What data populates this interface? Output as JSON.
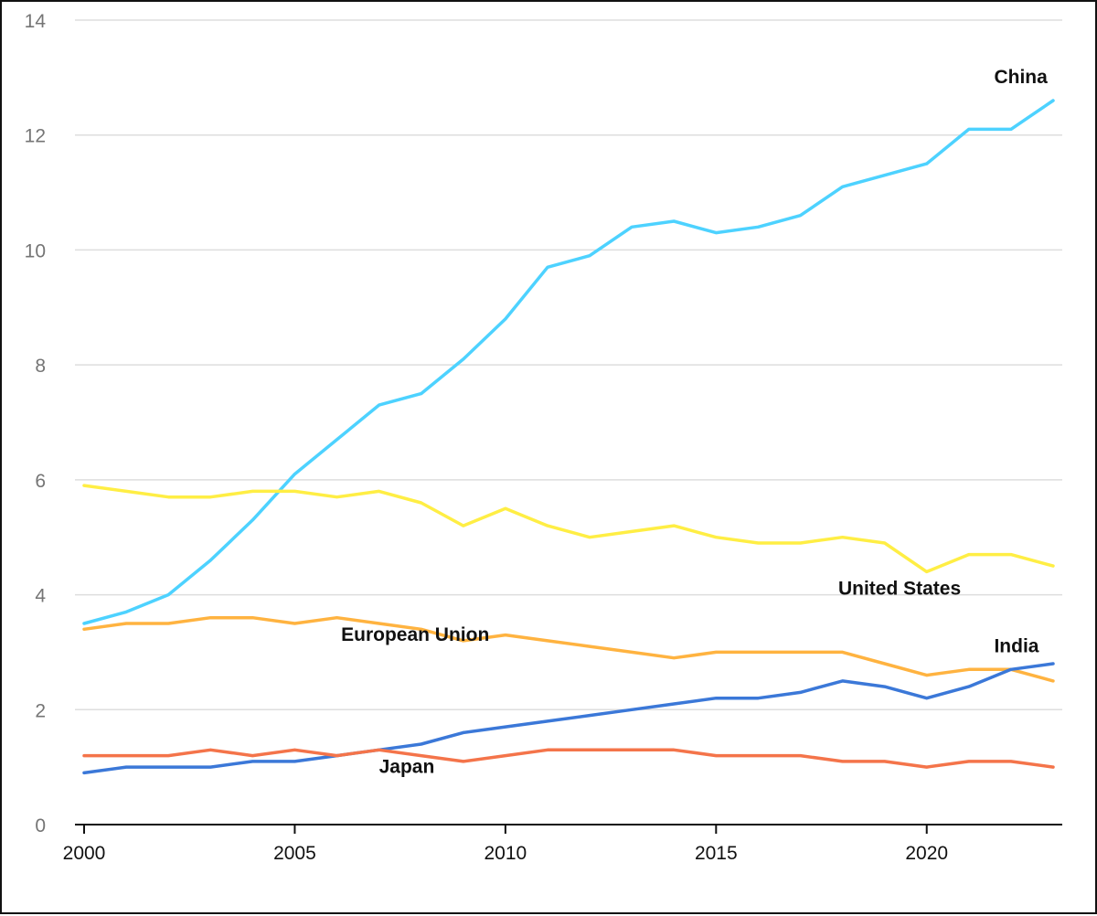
{
  "chart_data": {
    "type": "line",
    "title": "",
    "xlabel": "",
    "ylabel": "",
    "xlim": [
      2000,
      2023
    ],
    "ylim": [
      0,
      14
    ],
    "x_ticks": [
      "2000",
      "2005",
      "2010",
      "2015",
      "2020"
    ],
    "y_ticks": [
      "0",
      "2",
      "4",
      "6",
      "8",
      "10",
      "12",
      "14"
    ],
    "grid": "horizontal",
    "legend": "none",
    "x": [
      2000,
      2001,
      2002,
      2003,
      2004,
      2005,
      2006,
      2007,
      2008,
      2009,
      2010,
      2011,
      2012,
      2013,
      2014,
      2015,
      2016,
      2017,
      2018,
      2019,
      2020,
      2021,
      2022,
      2023
    ],
    "series": [
      {
        "name": "China",
        "color": "#4dd2ff",
        "values": [
          3.5,
          3.7,
          4.0,
          4.6,
          5.3,
          6.1,
          6.7,
          7.3,
          7.5,
          8.1,
          8.8,
          9.7,
          9.9,
          10.4,
          10.5,
          10.3,
          10.4,
          10.6,
          11.1,
          11.3,
          11.5,
          12.1,
          12.1,
          12.6
        ],
        "label_anchor": [
          2021.6,
          12.9
        ]
      },
      {
        "name": "United States",
        "color": "#ffee44",
        "values": [
          5.9,
          5.8,
          5.7,
          5.7,
          5.8,
          5.8,
          5.7,
          5.8,
          5.6,
          5.2,
          5.5,
          5.2,
          5.0,
          5.1,
          5.2,
          5.0,
          4.9,
          4.9,
          5.0,
          4.9,
          4.4,
          4.7,
          4.7,
          4.5
        ],
        "label_anchor": [
          2017.9,
          4.0
        ]
      },
      {
        "name": "European Union",
        "color": "#ffb340",
        "values": [
          3.4,
          3.5,
          3.5,
          3.6,
          3.6,
          3.5,
          3.6,
          3.5,
          3.4,
          3.2,
          3.3,
          3.2,
          3.1,
          3.0,
          2.9,
          3.0,
          3.0,
          3.0,
          3.0,
          2.8,
          2.6,
          2.7,
          2.7,
          2.5
        ],
        "label_anchor": [
          2006.1,
          3.2
        ]
      },
      {
        "name": "India",
        "color": "#3b78d8",
        "values": [
          0.9,
          1.0,
          1.0,
          1.0,
          1.1,
          1.1,
          1.2,
          1.3,
          1.4,
          1.6,
          1.7,
          1.8,
          1.9,
          2.0,
          2.1,
          2.2,
          2.2,
          2.3,
          2.5,
          2.4,
          2.2,
          2.4,
          2.7,
          2.8
        ],
        "label_anchor": [
          2021.6,
          3.0
        ]
      },
      {
        "name": "Japan",
        "color": "#f4744a",
        "values": [
          1.2,
          1.2,
          1.2,
          1.3,
          1.2,
          1.3,
          1.2,
          1.3,
          1.2,
          1.1,
          1.2,
          1.3,
          1.3,
          1.3,
          1.3,
          1.2,
          1.2,
          1.2,
          1.1,
          1.1,
          1.0,
          1.1,
          1.1,
          1.0
        ],
        "label_anchor": [
          2007.0,
          0.9
        ]
      }
    ]
  }
}
